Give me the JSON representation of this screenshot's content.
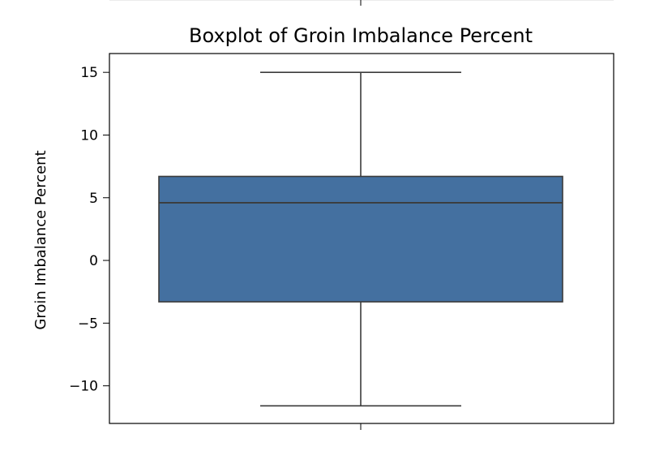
{
  "chart_data": {
    "type": "box",
    "title": "Boxplot of Groin Imbalance Percent",
    "xlabel": "",
    "ylabel": "Groin Imbalance Percent",
    "ylim": [
      -13,
      16.5
    ],
    "yticks": [
      15,
      10,
      5,
      0,
      -5,
      -10
    ],
    "ytick_labels": [
      "15",
      "10",
      "5",
      "0",
      "−5",
      "−10"
    ],
    "grid": false,
    "legend": "none",
    "box": {
      "whisker_high": 15,
      "q3": 6.7,
      "median": 4.6,
      "q1": -3.3,
      "whisker_low": -11.6
    },
    "colors": {
      "box_fill": "#4470a0",
      "box_line": "#3b3b3b",
      "axes": "#000000",
      "text": "#000000"
    }
  }
}
